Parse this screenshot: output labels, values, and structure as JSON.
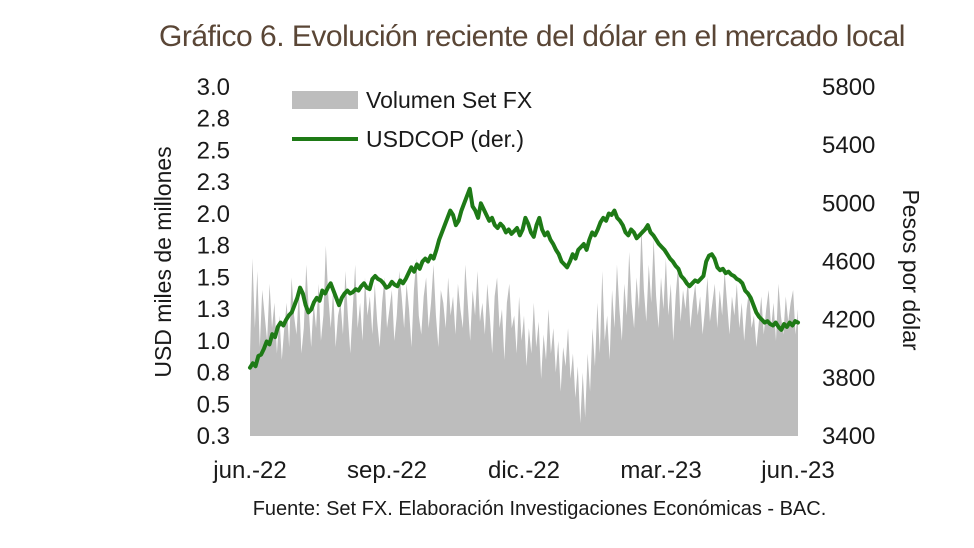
{
  "title": "Gráfico 6. Evolución reciente del dólar en el mercado local",
  "source": "Fuente: Set FX. Elaboración Investigaciones Económicas - BAC.",
  "colors": {
    "volume": "#bdbdbd",
    "usdcop": "#1e7a16",
    "title": "#5a4636",
    "text": "#1a1a1a"
  },
  "chart_data": {
    "type": "area",
    "x_ticks": [
      "jun.-22",
      "sep.-22",
      "dic.-22",
      "mar.-23",
      "jun.-23"
    ],
    "ylabel": "USD miles de millones",
    "ylabel_right": "Pesos por dólar",
    "y_ticks": [
      "3.0",
      "2.8",
      "2.5",
      "2.3",
      "2.0",
      "1.8",
      "1.5",
      "1.3",
      "1.0",
      "0.8",
      "0.5",
      "0.3"
    ],
    "y_right_ticks": [
      "5800",
      "5400",
      "5000",
      "4600",
      "4200",
      "3800",
      "3400"
    ],
    "ylim": [
      0.25,
      3.0
    ],
    "ylim_right": [
      3400,
      5800
    ],
    "legend_position": "top-left",
    "x_range": [
      "2022-06",
      "2023-06"
    ],
    "series": [
      {
        "name": "Volumen Set FX",
        "kind": "area",
        "axis": "left",
        "color": "#bdbdbd",
        "values": [
          0.9,
          1.65,
          1.1,
          1.55,
          0.95,
          1.4,
          1.2,
          1.0,
          1.45,
          1.1,
          1.3,
          0.9,
          1.2,
          0.85,
          1.1,
          1.3,
          0.95,
          1.5,
          1.2,
          1.05,
          1.4,
          0.9,
          1.1,
          1.6,
          1.25,
          0.95,
          1.3,
          1.1,
          1.45,
          1.0,
          1.2,
          1.75,
          1.35,
          1.1,
          1.4,
          0.95,
          1.2,
          1.3,
          1.05,
          1.55,
          1.2,
          0.9,
          1.25,
          1.6,
          1.1,
          1.3,
          1.0,
          1.5,
          1.2,
          1.35,
          1.05,
          1.45,
          1.15,
          0.95,
          1.3,
          1.5,
          1.1,
          1.25,
          1.4,
          1.0,
          1.2,
          1.55,
          1.35,
          1.1,
          1.45,
          1.25,
          0.95,
          1.4,
          1.65,
          1.2,
          1.05,
          1.35,
          1.5,
          1.1,
          1.3,
          1.6,
          1.2,
          0.95,
          1.4,
          1.3,
          1.1,
          1.5,
          1.2,
          1.35,
          1.05,
          1.45,
          1.25,
          1.1,
          1.6,
          1.3,
          1.0,
          1.4,
          1.2,
          1.55,
          1.15,
          1.3,
          1.05,
          1.45,
          1.2,
          0.9,
          1.35,
          1.5,
          1.1,
          1.25,
          0.85,
          1.3,
          1.45,
          1.1,
          1.2,
          0.9,
          1.35,
          1.0,
          1.2,
          0.8,
          1.1,
          0.9,
          1.3,
          0.95,
          1.15,
          0.7,
          1.05,
          0.85,
          1.25,
          0.9,
          1.1,
          0.75,
          1.0,
          0.6,
          0.95,
          0.8,
          1.1,
          0.7,
          0.9,
          0.55,
          0.8,
          0.35,
          0.75,
          0.4,
          0.9,
          0.6,
          1.1,
          0.8,
          1.3,
          0.9,
          1.55,
          1.0,
          1.2,
          0.85,
          1.4,
          1.1,
          1.6,
          1.25,
          1.0,
          1.45,
          1.2,
          1.7,
          1.3,
          1.1,
          1.5,
          1.25,
          1.9,
          1.4,
          1.15,
          1.6,
          1.3,
          1.8,
          1.35,
          1.1,
          1.5,
          1.25,
          1.65,
          1.2,
          1.45,
          1.0,
          1.35,
          1.6,
          1.15,
          1.4,
          1.25,
          1.5,
          1.1,
          1.3,
          1.45,
          1.2,
          1.35,
          1.05,
          1.25,
          1.5,
          1.15,
          1.3,
          1.45,
          1.1,
          1.4,
          1.2,
          1.55,
          1.3,
          1.05,
          1.35,
          1.2,
          1.45,
          1.1,
          1.3,
          1.0,
          1.25,
          1.4,
          1.1,
          1.2,
          0.95,
          1.15,
          1.35,
          1.05,
          1.25,
          1.4,
          1.1,
          1.3,
          1.0,
          1.45,
          1.2,
          1.05,
          1.35,
          1.15,
          1.3,
          1.4,
          1.05,
          1.25
        ]
      },
      {
        "name": "USDCOP (der.)",
        "kind": "line",
        "axis": "right",
        "color": "#1e7a16",
        "values": [
          3870,
          3900,
          3880,
          3950,
          3960,
          4000,
          4050,
          4030,
          4100,
          4080,
          4150,
          4180,
          4160,
          4200,
          4230,
          4250,
          4300,
          4350,
          4420,
          4380,
          4300,
          4250,
          4270,
          4320,
          4350,
          4330,
          4400,
          4380,
          4420,
          4450,
          4400,
          4350,
          4300,
          4350,
          4380,
          4400,
          4380,
          4390,
          4410,
          4400,
          4430,
          4450,
          4420,
          4410,
          4480,
          4500,
          4480,
          4470,
          4450,
          4420,
          4430,
          4460,
          4440,
          4430,
          4470,
          4450,
          4480,
          4520,
          4560,
          4530,
          4580,
          4550,
          4600,
          4620,
          4600,
          4640,
          4620,
          4680,
          4750,
          4800,
          4850,
          4900,
          4950,
          4920,
          4850,
          4880,
          4950,
          5000,
          5050,
          5100,
          4980,
          4950,
          4900,
          5000,
          4960,
          4920,
          4880,
          4900,
          4850,
          4830,
          4860,
          4840,
          4800,
          4820,
          4790,
          4810,
          4830,
          4780,
          4820,
          4900,
          4860,
          4800,
          4770,
          4850,
          4900,
          4820,
          4780,
          4800,
          4750,
          4720,
          4680,
          4650,
          4600,
          4580,
          4560,
          4600,
          4650,
          4620,
          4680,
          4700,
          4720,
          4680,
          4750,
          4800,
          4780,
          4820,
          4870,
          4900,
          4880,
          4930,
          4920,
          4950,
          4900,
          4880,
          4850,
          4800,
          4780,
          4820,
          4800,
          4760,
          4780,
          4800,
          4820,
          4850,
          4800,
          4780,
          4750,
          4720,
          4700,
          4680,
          4650,
          4620,
          4600,
          4570,
          4550,
          4500,
          4480,
          4450,
          4430,
          4450,
          4470,
          4460,
          4480,
          4500,
          4600,
          4640,
          4650,
          4620,
          4560,
          4540,
          4550,
          4520,
          4530,
          4510,
          4500,
          4480,
          4470,
          4450,
          4400,
          4380,
          4350,
          4300,
          4250,
          4220,
          4200,
          4180,
          4190,
          4170,
          4160,
          4180,
          4150,
          4130,
          4170,
          4150,
          4180,
          4160,
          4190,
          4180
        ]
      }
    ]
  }
}
